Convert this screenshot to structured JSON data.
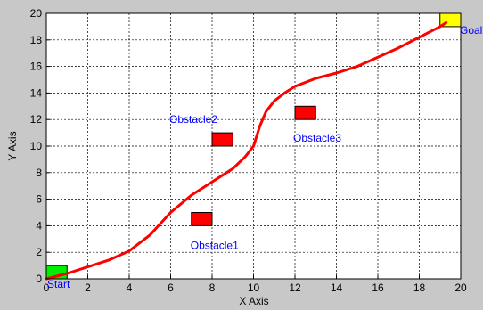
{
  "chart_data": {
    "type": "line",
    "title": "",
    "xlabel": "X Axis",
    "ylabel": "Y Axis",
    "xlim": [
      0,
      20
    ],
    "ylim": [
      0,
      20
    ],
    "xticks": [
      0,
      2,
      4,
      6,
      8,
      10,
      12,
      14,
      16,
      18,
      20
    ],
    "yticks": [
      0,
      2,
      4,
      6,
      8,
      10,
      12,
      14,
      16,
      18,
      20
    ],
    "grid": true,
    "series": [
      {
        "color": "#ff0000",
        "x": [
          0,
          1,
          2,
          3,
          4,
          5,
          6,
          7,
          8,
          9,
          9.6,
          10,
          10.3,
          10.6,
          11,
          11.5,
          12,
          13,
          14,
          15,
          16,
          17,
          18,
          19,
          19.3
        ],
        "y": [
          0,
          0.4,
          0.9,
          1.4,
          2.1,
          3.3,
          5.0,
          6.3,
          7.3,
          8.3,
          9.2,
          10.0,
          11.5,
          12.6,
          13.4,
          14.0,
          14.5,
          15.1,
          15.5,
          16.0,
          16.7,
          17.4,
          18.2,
          19.0,
          19.3
        ]
      }
    ],
    "markers": [
      {
        "label": "Start",
        "x_range": [
          0,
          1
        ],
        "y_range": [
          0,
          1
        ],
        "color": "#00ee00"
      },
      {
        "label": "Goal",
        "x_range": [
          19,
          20
        ],
        "y_range": [
          19,
          20
        ],
        "color": "#ffff00"
      }
    ],
    "obstacles": [
      {
        "label": "Obstacle1",
        "x_range": [
          7.0,
          8.0
        ],
        "y_range": [
          4.0,
          5.0
        ],
        "color": "#ff0000"
      },
      {
        "label": "Obstacle2",
        "x_range": [
          8.0,
          9.0
        ],
        "y_range": [
          10.0,
          11.0
        ],
        "color": "#ff0000"
      },
      {
        "label": "Obstacle3",
        "x_range": [
          12.0,
          13.0
        ],
        "y_range": [
          12.0,
          13.0
        ],
        "color": "#ff0000"
      }
    ],
    "label_color": "#0000ff"
  }
}
